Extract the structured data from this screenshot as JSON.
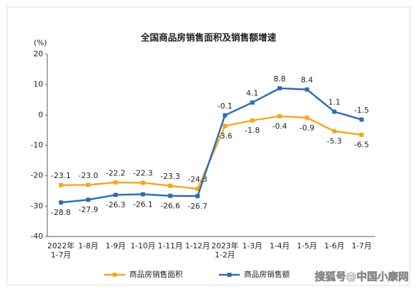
{
  "chart_data": {
    "type": "line",
    "title": "全国商品房销售面积及销售额增速",
    "y_label": "(%)",
    "categories": [
      "2022年\n1-7月",
      "1-8月",
      "1-9月",
      "1-10月",
      "1-11月",
      "1-12月",
      "2023年\n1-2月",
      "1-3月",
      "1-4月",
      "1-5月",
      "1-6月",
      "1-7月"
    ],
    "series": [
      {
        "name": "商品房销售面积",
        "color": "#f5a623",
        "values": [
          -23.1,
          -23.0,
          -22.2,
          -22.3,
          -23.3,
          -24.3,
          -3.6,
          -1.8,
          -0.4,
          -0.9,
          -5.3,
          -6.5
        ],
        "value_labels": [
          "-23.1",
          "-23.0",
          "-22.2",
          "-22.3",
          "-23.3",
          "-24.3",
          "-3.6",
          "-1.8",
          "-0.4",
          "-0.9",
          "-5.3",
          "-6.5"
        ]
      },
      {
        "name": "商品房销售额",
        "color": "#2e6bb5",
        "values": [
          -28.8,
          -27.9,
          -26.3,
          -26.1,
          -26.6,
          -26.7,
          -0.1,
          4.1,
          8.8,
          8.4,
          1.1,
          -1.5
        ],
        "value_labels": [
          "-28.8",
          "-27.9",
          "-26.3",
          "-26.1",
          "-26.6",
          "-26.7",
          "-0.1",
          "4.1",
          "8.8",
          "8.4",
          "1.1",
          "-1.5"
        ]
      }
    ],
    "ylim": [
      -40,
      20
    ],
    "yticks": [
      -40,
      -30,
      -20,
      -10,
      0,
      10,
      20
    ],
    "legend": "bottom",
    "watermark": "搜狐号@中国小康网"
  }
}
